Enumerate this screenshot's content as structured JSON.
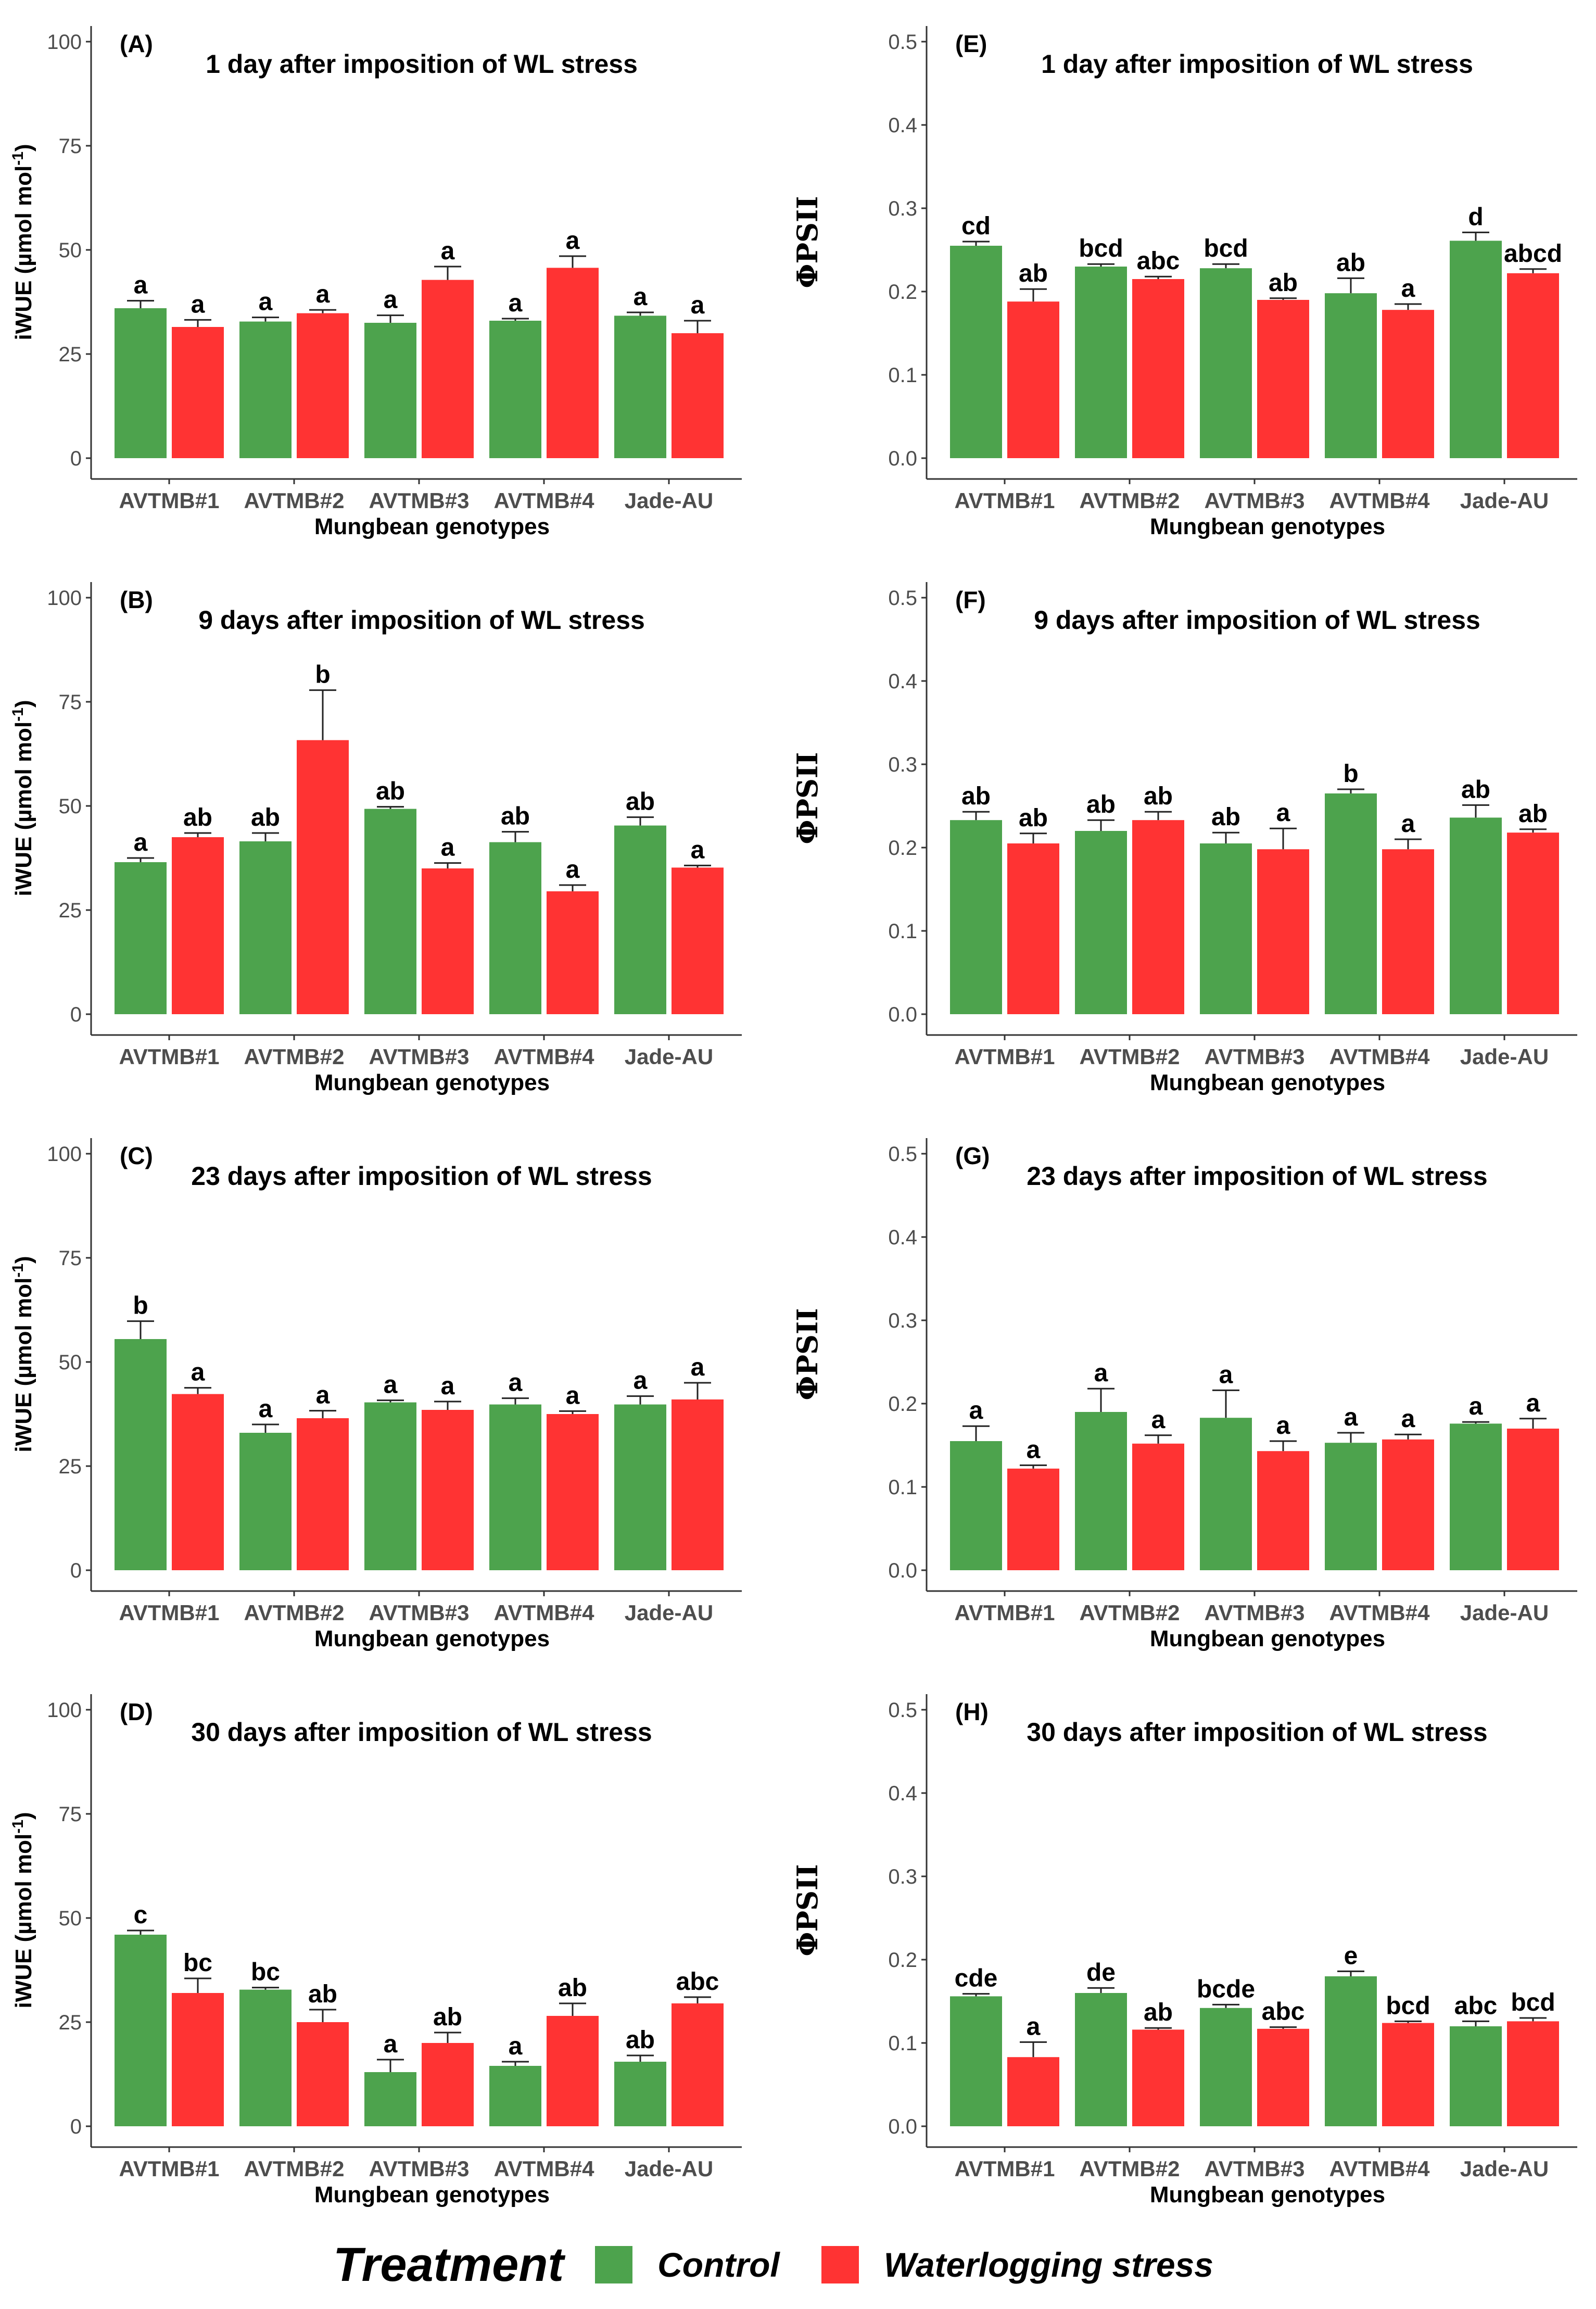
{
  "colors": {
    "control": "#4da34d",
    "stress": "#ff3333",
    "axis": "#333333",
    "tick": "#4d4d4d"
  },
  "legend": {
    "title": "Treatment",
    "control_label": "Control",
    "stress_label": "Waterlogging stress"
  },
  "chart_data": [
    {
      "type": "bar",
      "tag": "(A)",
      "title": "1 day after imposition of WL stress",
      "ylabel": "iWUE (µmol mol⁻¹)",
      "xlabel": "Mungbean genotypes",
      "categories": [
        "AVTMB#1",
        "AVTMB#2",
        "AVTMB#3",
        "AVTMB#4",
        "Jade-AU"
      ],
      "ylim": [
        0,
        100
      ],
      "yticks": [
        "0",
        "25",
        "50",
        "75",
        "100"
      ],
      "series": [
        {
          "name": "Control",
          "values": [
            36,
            32.8,
            32.5,
            33,
            34.2
          ],
          "errors": [
            1.8,
            1,
            1.8,
            0.5,
            0.8
          ],
          "labels": [
            "a",
            "a",
            "a",
            "a",
            "a"
          ]
        },
        {
          "name": "Waterlogging stress",
          "values": [
            31.5,
            34.8,
            42.8,
            45.7,
            30
          ],
          "errors": [
            1.7,
            0.8,
            3.2,
            2.8,
            3
          ],
          "labels": [
            "a",
            "a",
            "a",
            "a",
            "a"
          ]
        }
      ]
    },
    {
      "type": "bar",
      "tag": "(E)",
      "title": "1 day after imposition of WL stress",
      "ylabel": "ΦPSII",
      "xlabel": "Mungbean genotypes",
      "categories": [
        "AVTMB#1",
        "AVTMB#2",
        "AVTMB#3",
        "AVTMB#4",
        "Jade-AU"
      ],
      "ylim": [
        0,
        0.5
      ],
      "yticks": [
        "0.0",
        "0.1",
        "0.2",
        "0.3",
        "0.4",
        "0.5"
      ],
      "series": [
        {
          "name": "Control",
          "values": [
            0.255,
            0.23,
            0.228,
            0.198,
            0.261
          ],
          "errors": [
            0.005,
            0.003,
            0.005,
            0.018,
            0.01
          ],
          "labels": [
            "cd",
            "bcd",
            "bcd",
            "ab",
            "d"
          ]
        },
        {
          "name": "Waterlogging stress",
          "values": [
            0.188,
            0.215,
            0.19,
            0.178,
            0.222
          ],
          "errors": [
            0.015,
            0.003,
            0.002,
            0.007,
            0.005
          ],
          "labels": [
            "ab",
            "abc",
            "ab",
            "a",
            "abcd"
          ]
        }
      ]
    },
    {
      "type": "bar",
      "tag": "(B)",
      "title": "9 days after imposition of WL stress",
      "ylabel": "iWUE (µmol mol⁻¹)",
      "xlabel": "Mungbean genotypes",
      "categories": [
        "AVTMB#1",
        "AVTMB#2",
        "AVTMB#3",
        "AVTMB#4",
        "Jade-AU"
      ],
      "ylim": [
        0,
        100
      ],
      "yticks": [
        "0",
        "25",
        "50",
        "75",
        "100"
      ],
      "series": [
        {
          "name": "Control",
          "values": [
            36.5,
            41.5,
            49.3,
            41.3,
            45.3
          ],
          "errors": [
            1,
            2,
            0.5,
            2.5,
            2
          ],
          "labels": [
            "a",
            "ab",
            "ab",
            "ab",
            "ab"
          ]
        },
        {
          "name": "Waterlogging stress",
          "values": [
            42.5,
            65.8,
            35,
            29.5,
            35.2
          ],
          "errors": [
            1,
            12,
            1.3,
            1.5,
            0.5
          ],
          "labels": [
            "ab",
            "b",
            "a",
            "a",
            "a"
          ]
        }
      ]
    },
    {
      "type": "bar",
      "tag": "(F)",
      "title": "9 days after imposition of WL stress",
      "ylabel": "ΦPSII",
      "xlabel": "Mungbean genotypes",
      "categories": [
        "AVTMB#1",
        "AVTMB#2",
        "AVTMB#3",
        "AVTMB#4",
        "Jade-AU"
      ],
      "ylim": [
        0,
        0.5
      ],
      "yticks": [
        "0.0",
        "0.1",
        "0.2",
        "0.3",
        "0.4",
        "0.5"
      ],
      "series": [
        {
          "name": "Control",
          "values": [
            0.233,
            0.22,
            0.205,
            0.265,
            0.236
          ],
          "errors": [
            0.01,
            0.013,
            0.013,
            0.005,
            0.015
          ],
          "labels": [
            "ab",
            "ab",
            "ab",
            "b",
            "ab"
          ]
        },
        {
          "name": "Waterlogging stress",
          "values": [
            0.205,
            0.233,
            0.198,
            0.198,
            0.218
          ],
          "errors": [
            0.012,
            0.01,
            0.025,
            0.012,
            0.004
          ],
          "labels": [
            "ab",
            "ab",
            "a",
            "a",
            "ab"
          ]
        }
      ]
    },
    {
      "type": "bar",
      "tag": "(C)",
      "title": "23 days after imposition of WL stress",
      "ylabel": "iWUE (µmol mol⁻¹)",
      "xlabel": "Mungbean genotypes",
      "categories": [
        "AVTMB#1",
        "AVTMB#2",
        "AVTMB#3",
        "AVTMB#4",
        "Jade-AU"
      ],
      "ylim": [
        0,
        100
      ],
      "yticks": [
        "0",
        "25",
        "50",
        "75",
        "100"
      ],
      "series": [
        {
          "name": "Control",
          "values": [
            55.5,
            33,
            40.3,
            39.8,
            39.8
          ],
          "errors": [
            4.3,
            2,
            0.5,
            1.5,
            2
          ],
          "labels": [
            "b",
            "a",
            "a",
            "a",
            "a"
          ]
        },
        {
          "name": "Waterlogging stress",
          "values": [
            42.3,
            36.5,
            38.5,
            37.5,
            41
          ],
          "errors": [
            1.5,
            1.8,
            2,
            0.7,
            4
          ],
          "labels": [
            "a",
            "a",
            "a",
            "a",
            "a"
          ]
        }
      ]
    },
    {
      "type": "bar",
      "tag": "(G)",
      "title": "23 days after imposition of WL stress",
      "ylabel": "ΦPSII",
      "xlabel": "Mungbean genotypes",
      "categories": [
        "AVTMB#1",
        "AVTMB#2",
        "AVTMB#3",
        "AVTMB#4",
        "Jade-AU"
      ],
      "ylim": [
        0,
        0.5
      ],
      "yticks": [
        "0.0",
        "0.1",
        "0.2",
        "0.3",
        "0.4",
        "0.5"
      ],
      "series": [
        {
          "name": "Control",
          "values": [
            0.155,
            0.19,
            0.183,
            0.153,
            0.176
          ],
          "errors": [
            0.018,
            0.028,
            0.033,
            0.012,
            0.002
          ],
          "labels": [
            "a",
            "a",
            "a",
            "a",
            "a"
          ]
        },
        {
          "name": "Waterlogging stress",
          "values": [
            0.122,
            0.152,
            0.143,
            0.157,
            0.17
          ],
          "errors": [
            0.004,
            0.01,
            0.012,
            0.006,
            0.012
          ],
          "labels": [
            "a",
            "a",
            "a",
            "a",
            "a"
          ]
        }
      ]
    },
    {
      "type": "bar",
      "tag": "(D)",
      "title": "30 days after imposition of WL stress",
      "ylabel": "iWUE (µmol mol⁻¹)",
      "xlabel": "Mungbean genotypes",
      "categories": [
        "AVTMB#1",
        "AVTMB#2",
        "AVTMB#3",
        "AVTMB#4",
        "Jade-AU"
      ],
      "ylim": [
        0,
        100
      ],
      "yticks": [
        "0",
        "25",
        "50",
        "75",
        "100"
      ],
      "series": [
        {
          "name": "Control",
          "values": [
            46,
            32.8,
            13,
            14.5,
            15.5
          ],
          "errors": [
            1,
            0.5,
            3,
            1,
            1.5
          ],
          "labels": [
            "c",
            "bc",
            "a",
            "a",
            "ab"
          ]
        },
        {
          "name": "Waterlogging stress",
          "values": [
            32,
            25,
            20,
            26.5,
            29.5
          ],
          "errors": [
            3.5,
            3,
            2.5,
            3,
            1.5
          ],
          "labels": [
            "bc",
            "ab",
            "ab",
            "ab",
            "abc"
          ]
        }
      ]
    },
    {
      "type": "bar",
      "tag": "(H)",
      "title": "30 days after imposition of WL stress",
      "ylabel": "ΦPSII",
      "xlabel": "Mungbean genotypes",
      "categories": [
        "AVTMB#1",
        "AVTMB#2",
        "AVTMB#3",
        "AVTMB#4",
        "Jade-AU"
      ],
      "ylim": [
        0,
        0.5
      ],
      "yticks": [
        "0.0",
        "0.1",
        "0.2",
        "0.3",
        "0.4",
        "0.5"
      ],
      "series": [
        {
          "name": "Control",
          "values": [
            0.156,
            0.16,
            0.142,
            0.18,
            0.12
          ],
          "errors": [
            0.003,
            0.006,
            0.004,
            0.006,
            0.006
          ],
          "labels": [
            "cde",
            "de",
            "bcde",
            "e",
            "abc"
          ]
        },
        {
          "name": "Waterlogging stress",
          "values": [
            0.083,
            0.116,
            0.117,
            0.124,
            0.126
          ],
          "errors": [
            0.018,
            0.002,
            0.002,
            0.002,
            0.004
          ],
          "labels": [
            "a",
            "ab",
            "abc",
            "bcd",
            "bcd"
          ]
        }
      ]
    }
  ]
}
